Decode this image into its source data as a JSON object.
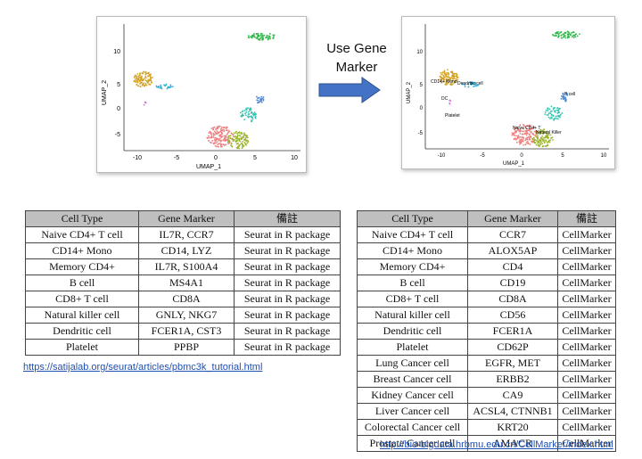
{
  "arrow": {
    "label_line1": "Use Gene",
    "label_line2": "Marker"
  },
  "plot_left": {
    "xlabel": "UMAP_1",
    "ylabel": "UMAP_2",
    "xticks": [
      "-10",
      "-5",
      "0",
      "5",
      "10"
    ],
    "yticks": [
      "10",
      "5",
      "0",
      "-5"
    ]
  },
  "plot_right": {
    "xlabel": "UMAP_1",
    "ylabel": "UMAP_2",
    "xticks": [
      "-10",
      "-5",
      "0",
      "5",
      "10"
    ],
    "yticks": [
      "10",
      "5",
      "0",
      "-5"
    ],
    "cluster_labels": [
      "CD14+ Mono",
      "Dendritic cell",
      "DC",
      "Platelet",
      "Naive CD4+ T",
      "Natural Killer",
      "B cell"
    ]
  },
  "table_left": {
    "headers": [
      "Cell Type",
      "Gene Marker",
      "備註"
    ],
    "rows": [
      [
        "Naive CD4+ T cell",
        "IL7R, CCR7",
        "Seurat in R package"
      ],
      [
        "CD14+ Mono",
        "CD14, LYZ",
        "Seurat in R package"
      ],
      [
        "Memory CD4+",
        "IL7R, S100A4",
        "Seurat in R package"
      ],
      [
        "B cell",
        "MS4A1",
        "Seurat in R package"
      ],
      [
        "CD8+ T cell",
        "CD8A",
        "Seurat in R package"
      ],
      [
        "Natural killer cell",
        "GNLY, NKG7",
        "Seurat in R package"
      ],
      [
        "Dendritic cell",
        "FCER1A, CST3",
        "Seurat in R package"
      ],
      [
        "Platelet",
        "PPBP",
        "Seurat in R package"
      ]
    ],
    "link": "https://satijalab.org/seurat/articles/pbmc3k_tutorial.html"
  },
  "table_right": {
    "headers": [
      "Cell Type",
      "Gene Marker",
      "備註"
    ],
    "rows": [
      [
        "Naive CD4+ T cell",
        "CCR7",
        "CellMarker"
      ],
      [
        "CD14+ Mono",
        "ALOX5AP",
        "CellMarker"
      ],
      [
        "Memory CD4+",
        "CD4",
        "CellMarker"
      ],
      [
        "B cell",
        "CD19",
        "CellMarker"
      ],
      [
        "CD8+ T cell",
        "CD8A",
        "CellMarker"
      ],
      [
        "Natural killer cell",
        "CD56",
        "CellMarker"
      ],
      [
        "Dendritic cell",
        "FCER1A",
        "CellMarker"
      ],
      [
        "Platelet",
        "CD62P",
        "CellMarker"
      ],
      [
        "Lung Cancer cell",
        "EGFR, MET",
        "CellMarker"
      ],
      [
        "Breast Cancer cell",
        "ERBB2",
        "CellMarker"
      ],
      [
        "Kidney Cancer cell",
        "CA9",
        "CellMarker"
      ],
      [
        "Liver Cancer cell",
        "ACSL4, CTNNB1",
        "CellMarker"
      ],
      [
        "Colorectal Cancer cell",
        "KRT20",
        "CellMarker"
      ],
      [
        "Prostate Cancer cell",
        "AMACR",
        "CellMarker"
      ]
    ],
    "link": "http://bio-bigdata.hrbmu.edu.cn/CellMarker/index.html"
  },
  "colors": {
    "naive_cd4": "#f07f7f",
    "cd14_mono": "#d4a21e",
    "memory_cd4": "#9bb52e",
    "b_cell": "#2fb84a",
    "cd8_t": "#33c3b0",
    "nk": "#4a8ad8",
    "dendritic": "#2fb0d8",
    "platelet": "#d87ad8",
    "arrow": "#4472c4"
  }
}
